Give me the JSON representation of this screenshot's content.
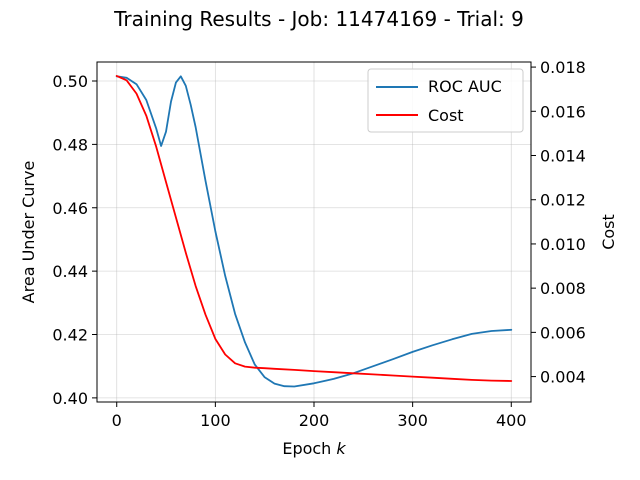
{
  "chart_data": {
    "type": "line",
    "title": "Training Results - Job: 11474169 - Trial: 9",
    "xlabel_prefix": "Epoch ",
    "xlabel_var": "k",
    "ylabel_left": "Area Under Curve",
    "ylabel_right": "Cost",
    "xlim": [
      -20,
      420
    ],
    "ylim_left": [
      0.3987,
      0.506
    ],
    "ylim_right": [
      0.00285,
      0.01823
    ],
    "xticks": [
      0,
      100,
      200,
      300,
      400
    ],
    "xtick_labels": [
      "0",
      "100",
      "200",
      "300",
      "400"
    ],
    "yticks_left": [
      0.4,
      0.42,
      0.44,
      0.46,
      0.48,
      0.5
    ],
    "ytick_labels_left": [
      "0.40",
      "0.42",
      "0.44",
      "0.46",
      "0.48",
      "0.50"
    ],
    "yticks_right": [
      0.004,
      0.006,
      0.008,
      0.01,
      0.012,
      0.014,
      0.016,
      0.018
    ],
    "ytick_labels_right": [
      "0.004",
      "0.006",
      "0.008",
      "0.010",
      "0.012",
      "0.014",
      "0.016",
      "0.018"
    ],
    "grid": true,
    "legend_position": "top-right",
    "series": [
      {
        "name": "ROC AUC",
        "axis": "left",
        "color": "#1f77b4",
        "x": [
          0,
          10,
          20,
          30,
          40,
          45,
          50,
          55,
          60,
          65,
          70,
          75,
          80,
          90,
          100,
          110,
          120,
          130,
          140,
          150,
          160,
          170,
          180,
          200,
          220,
          240,
          260,
          280,
          300,
          320,
          340,
          360,
          380,
          400
        ],
        "y": [
          0.5015,
          0.501,
          0.499,
          0.494,
          0.485,
          0.4795,
          0.484,
          0.4935,
          0.4995,
          0.5015,
          0.4985,
          0.4925,
          0.4855,
          0.4685,
          0.4525,
          0.4385,
          0.4265,
          0.4175,
          0.4105,
          0.4065,
          0.4045,
          0.4037,
          0.4036,
          0.4046,
          0.406,
          0.4078,
          0.41,
          0.4122,
          0.4145,
          0.4166,
          0.4185,
          0.4202,
          0.4211,
          0.4215
        ]
      },
      {
        "name": "Cost",
        "axis": "right",
        "color": "#ff0000",
        "x": [
          0,
          10,
          20,
          30,
          40,
          50,
          60,
          70,
          80,
          90,
          100,
          110,
          120,
          130,
          140,
          150,
          160,
          180,
          200,
          220,
          240,
          260,
          280,
          300,
          320,
          340,
          360,
          380,
          400
        ],
        "y": [
          0.0176,
          0.0174,
          0.0168,
          0.0158,
          0.0144,
          0.0128,
          0.0112,
          0.0096,
          0.0081,
          0.0068,
          0.0057,
          0.005,
          0.0046,
          0.00445,
          0.0044,
          0.00438,
          0.00435,
          0.0043,
          0.00425,
          0.0042,
          0.00415,
          0.0041,
          0.00405,
          0.004,
          0.00395,
          0.0039,
          0.00385,
          0.00382,
          0.0038
        ]
      }
    ]
  }
}
